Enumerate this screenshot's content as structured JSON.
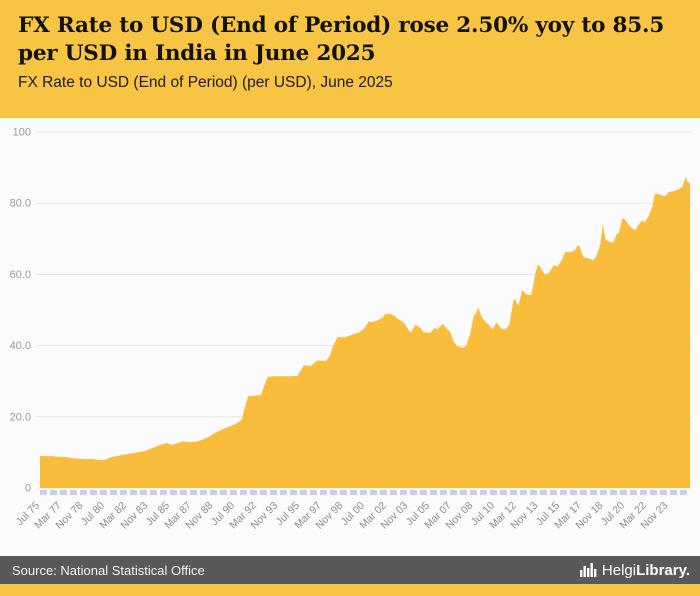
{
  "header": {
    "title": "FX Rate to USD (End of Period) rose 2.50% yoy to 85.5 per USD in India in June 2025",
    "subtitle": "FX Rate to USD (End of Period) (per USD), June 2025"
  },
  "footer": {
    "source": "Source: National Statistical Office",
    "brand_light": "Helgi",
    "brand_bold": "Library."
  },
  "colors": {
    "header_bg": "#F7C443",
    "area": "#F9BD3B",
    "chart_bg": "#FBFBFB",
    "grid": "#E6E6E6",
    "y_label": "#999999",
    "x_label": "#8C8C8C",
    "axis_ticks": "#C8CEE8",
    "footer_bg": "#59595B",
    "footer_text": "#F2F2F2",
    "accent_strip": "#F7C443"
  },
  "chart_data": {
    "type": "area",
    "title": "FX Rate to USD (End of Period) rose 2.50% yoy to 85.5 per USD in India in June 2025",
    "subtitle": "FX Rate to USD (End of Period) (per USD), June 2025",
    "series_name": "FX Rate to USD (End of Period) (per USD), India",
    "latest_value": 85.5,
    "latest_period": "June 2025",
    "yoy_change_pct": 2.5,
    "legend": "off",
    "grid": "horizontal",
    "xlim": [
      1975.5,
      2025.5
    ],
    "ylim": [
      0,
      100
    ],
    "yticks": [
      {
        "v": 0,
        "label": "0"
      },
      {
        "v": 20,
        "label": "20.0"
      },
      {
        "v": 40,
        "label": "40.0"
      },
      {
        "v": 60,
        "label": "60.0"
      },
      {
        "v": 80,
        "label": "80.0"
      },
      {
        "v": 100,
        "label": "100"
      }
    ],
    "x_ticks": [
      {
        "label": "Jul 75",
        "year": 1975.5
      },
      {
        "label": "Mar 77",
        "year": 1977.17
      },
      {
        "label": "Nov 78",
        "year": 1978.83
      },
      {
        "label": "Jul 80",
        "year": 1980.5
      },
      {
        "label": "Mar 82",
        "year": 1982.17
      },
      {
        "label": "Nov 83",
        "year": 1983.83
      },
      {
        "label": "Jul 85",
        "year": 1985.5
      },
      {
        "label": "Mar 87",
        "year": 1987.17
      },
      {
        "label": "Nov 88",
        "year": 1988.83
      },
      {
        "label": "Jul 90",
        "year": 1990.5
      },
      {
        "label": "Mar 92",
        "year": 1992.17
      },
      {
        "label": "Nov 93",
        "year": 1993.83
      },
      {
        "label": "Jul 95",
        "year": 1995.5
      },
      {
        "label": "Mar 97",
        "year": 1997.17
      },
      {
        "label": "Nov 98",
        "year": 1998.83
      },
      {
        "label": "Jul 00",
        "year": 2000.5
      },
      {
        "label": "Mar 02",
        "year": 2002.17
      },
      {
        "label": "Nov 03",
        "year": 2003.83
      },
      {
        "label": "Jul 05",
        "year": 2005.5
      },
      {
        "label": "Mar 07",
        "year": 2007.17
      },
      {
        "label": "Nov 08",
        "year": 2008.83
      },
      {
        "label": "Jul 10",
        "year": 2010.5
      },
      {
        "label": "Mar 12",
        "year": 2012.17
      },
      {
        "label": "Nov 13",
        "year": 2013.83
      },
      {
        "label": "Jul 15",
        "year": 2015.5
      },
      {
        "label": "Mar 17",
        "year": 2017.17
      },
      {
        "label": "Nov 18",
        "year": 2018.83
      },
      {
        "label": "Jul 20",
        "year": 2020.5
      },
      {
        "label": "Mar 22",
        "year": 2022.17
      },
      {
        "label": "Nov 23",
        "year": 2023.83
      }
    ],
    "points": [
      [
        1975.5,
        9.0
      ],
      [
        1976.0,
        8.95
      ],
      [
        1976.5,
        8.9
      ],
      [
        1977.0,
        8.75
      ],
      [
        1977.5,
        8.7
      ],
      [
        1978.0,
        8.35
      ],
      [
        1978.5,
        8.2
      ],
      [
        1979.0,
        8.1
      ],
      [
        1979.5,
        8.15
      ],
      [
        1980.0,
        7.95
      ],
      [
        1980.5,
        7.9
      ],
      [
        1981.0,
        8.7
      ],
      [
        1981.5,
        9.0
      ],
      [
        1982.0,
        9.4
      ],
      [
        1982.5,
        9.7
      ],
      [
        1983.0,
        10.0
      ],
      [
        1983.5,
        10.3
      ],
      [
        1984.0,
        11.0
      ],
      [
        1984.5,
        11.7
      ],
      [
        1985.0,
        12.4
      ],
      [
        1985.3,
        12.6
      ],
      [
        1985.6,
        12.1
      ],
      [
        1986.0,
        12.5
      ],
      [
        1986.5,
        13.1
      ],
      [
        1987.0,
        12.9
      ],
      [
        1987.5,
        13.0
      ],
      [
        1988.0,
        13.6
      ],
      [
        1988.5,
        14.4
      ],
      [
        1989.0,
        15.5
      ],
      [
        1989.5,
        16.4
      ],
      [
        1990.0,
        17.2
      ],
      [
        1990.5,
        17.9
      ],
      [
        1991.0,
        19.1
      ],
      [
        1991.5,
        25.8
      ],
      [
        1992.0,
        25.9
      ],
      [
        1992.5,
        26.2
      ],
      [
        1993.0,
        31.2
      ],
      [
        1993.5,
        31.4
      ],
      [
        1994.0,
        31.4
      ],
      [
        1994.5,
        31.4
      ],
      [
        1995.0,
        31.4
      ],
      [
        1995.3,
        31.5
      ],
      [
        1995.8,
        34.5
      ],
      [
        1996.0,
        34.4
      ],
      [
        1996.3,
        34.2
      ],
      [
        1996.8,
        35.8
      ],
      [
        1997.0,
        35.8
      ],
      [
        1997.5,
        35.7
      ],
      [
        1997.8,
        37.2
      ],
      [
        1998.0,
        39.5
      ],
      [
        1998.4,
        42.5
      ],
      [
        1998.8,
        42.3
      ],
      [
        1999.0,
        42.4
      ],
      [
        1999.5,
        43.1
      ],
      [
        2000.0,
        43.6
      ],
      [
        2000.4,
        44.7
      ],
      [
        2000.8,
        46.8
      ],
      [
        2001.0,
        46.6
      ],
      [
        2001.5,
        47.1
      ],
      [
        2001.9,
        48.0
      ],
      [
        2002.0,
        48.7
      ],
      [
        2002.4,
        49.0
      ],
      [
        2002.8,
        48.3
      ],
      [
        2003.0,
        47.6
      ],
      [
        2003.5,
        46.4
      ],
      [
        2004.0,
        43.6
      ],
      [
        2004.4,
        45.9
      ],
      [
        2004.8,
        44.9
      ],
      [
        2005.0,
        43.7
      ],
      [
        2005.5,
        43.5
      ],
      [
        2005.9,
        45.1
      ],
      [
        2006.0,
        44.4
      ],
      [
        2006.5,
        46.1
      ],
      [
        2006.9,
        44.2
      ],
      [
        2007.0,
        44.3
      ],
      [
        2007.3,
        41.3
      ],
      [
        2007.6,
        39.8
      ],
      [
        2008.0,
        39.4
      ],
      [
        2008.3,
        40.0
      ],
      [
        2008.6,
        43.5
      ],
      [
        2008.9,
        49.0
      ],
      [
        2009.0,
        48.6
      ],
      [
        2009.2,
        50.7
      ],
      [
        2009.5,
        47.9
      ],
      [
        2009.8,
        46.5
      ],
      [
        2010.0,
        46.0
      ],
      [
        2010.3,
        44.5
      ],
      [
        2010.6,
        46.5
      ],
      [
        2011.0,
        44.7
      ],
      [
        2011.3,
        44.6
      ],
      [
        2011.6,
        45.8
      ],
      [
        2011.9,
        52.2
      ],
      [
        2012.0,
        53.3
      ],
      [
        2012.3,
        51.2
      ],
      [
        2012.6,
        55.6
      ],
      [
        2012.9,
        54.5
      ],
      [
        2013.0,
        54.3
      ],
      [
        2013.3,
        54.3
      ],
      [
        2013.6,
        60.2
      ],
      [
        2013.8,
        62.8
      ],
      [
        2014.0,
        61.9
      ],
      [
        2014.3,
        60.1
      ],
      [
        2014.6,
        60.2
      ],
      [
        2014.9,
        61.8
      ],
      [
        2015.0,
        62.6
      ],
      [
        2015.3,
        62.3
      ],
      [
        2015.6,
        63.8
      ],
      [
        2015.9,
        66.2
      ],
      [
        2016.0,
        66.3
      ],
      [
        2016.3,
        66.3
      ],
      [
        2016.6,
        66.7
      ],
      [
        2016.9,
        68.2
      ],
      [
        2017.0,
        67.9
      ],
      [
        2017.3,
        64.9
      ],
      [
        2017.6,
        64.6
      ],
      [
        2017.9,
        64.2
      ],
      [
        2018.0,
        63.9
      ],
      [
        2018.3,
        65.0
      ],
      [
        2018.6,
        68.5
      ],
      [
        2018.8,
        74.1
      ],
      [
        2019.0,
        69.8
      ],
      [
        2019.3,
        69.2
      ],
      [
        2019.6,
        68.9
      ],
      [
        2019.9,
        71.7
      ],
      [
        2020.0,
        71.3
      ],
      [
        2020.3,
        75.7
      ],
      [
        2020.5,
        75.5
      ],
      [
        2020.8,
        73.8
      ],
      [
        2021.0,
        73.1
      ],
      [
        2021.3,
        72.4
      ],
      [
        2021.6,
        74.3
      ],
      [
        2021.9,
        75.2
      ],
      [
        2022.0,
        74.5
      ],
      [
        2022.3,
        76.2
      ],
      [
        2022.6,
        79.0
      ],
      [
        2022.8,
        82.7
      ],
      [
        2023.0,
        82.7
      ],
      [
        2023.3,
        82.2
      ],
      [
        2023.6,
        82.0
      ],
      [
        2023.9,
        83.3
      ],
      [
        2024.0,
        83.2
      ],
      [
        2024.3,
        83.4
      ],
      [
        2024.6,
        83.9
      ],
      [
        2024.9,
        84.5
      ],
      [
        2025.0,
        85.6
      ],
      [
        2025.1,
        86.6
      ],
      [
        2025.2,
        87.5
      ],
      [
        2025.3,
        86.0
      ],
      [
        2025.4,
        85.8
      ],
      [
        2025.5,
        85.5
      ]
    ]
  }
}
